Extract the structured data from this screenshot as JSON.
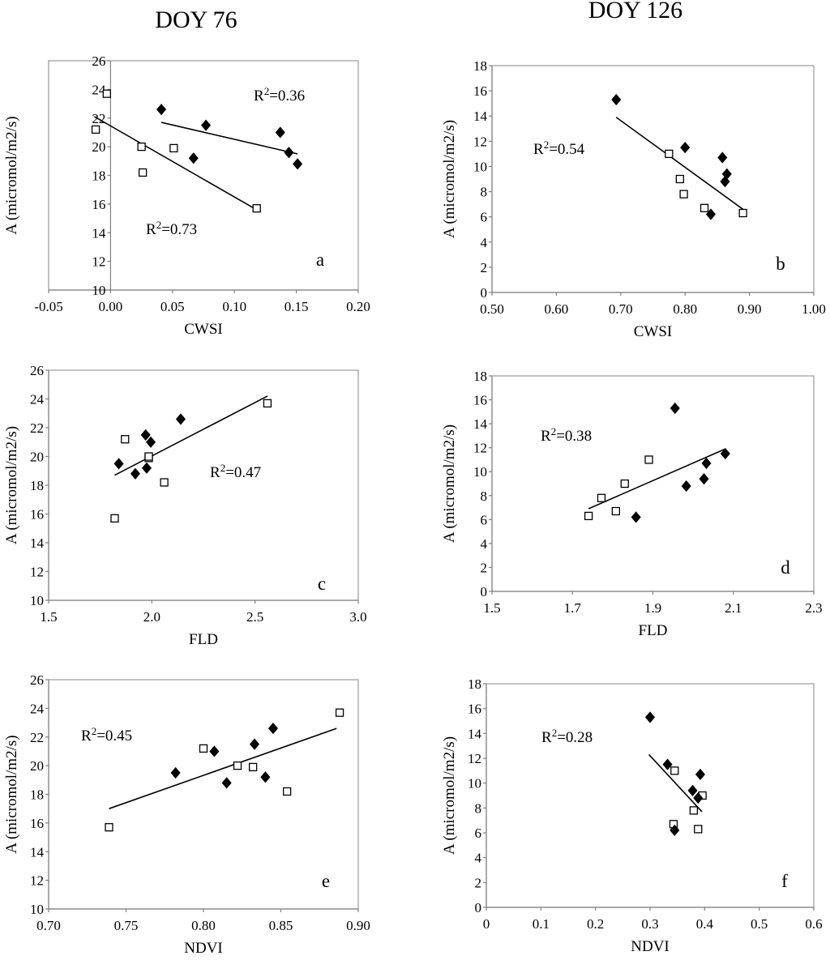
{
  "figure": {
    "column_titles": [
      "DOY 76",
      "DOY 126"
    ]
  },
  "chart_data": [
    {
      "id": "a",
      "type": "scatter",
      "panel_letter": "a",
      "xlabel": "CWSI",
      "ylabel": "A (micromol/m2/s)",
      "xlim": [
        -0.05,
        0.2
      ],
      "ylim": [
        10,
        26
      ],
      "xticks": [
        "-0.05",
        "0.00",
        "0.05",
        "0.10",
        "0.15",
        "0.20"
      ],
      "yticks": [
        "10",
        "12",
        "14",
        "16",
        "18",
        "20",
        "22",
        "24",
        "26"
      ],
      "y_axis_at_x0": true,
      "series": [
        {
          "name": "open",
          "marker": "open-square",
          "x": [
            -0.003,
            -0.012,
            0.025,
            0.026,
            0.051,
            0.118
          ],
          "y": [
            23.7,
            21.2,
            20.0,
            18.2,
            19.9,
            15.7
          ],
          "trend": {
            "x1": -0.013,
            "y1": 22.1,
            "x2": 0.118,
            "y2": 15.6
          },
          "r2": {
            "prefix": "R",
            "sup": "2",
            "value": "=0.73"
          }
        },
        {
          "name": "filled",
          "marker": "filled-diamond",
          "x": [
            0.041,
            0.077,
            0.067,
            0.137,
            0.144,
            0.151
          ],
          "y": [
            22.6,
            21.5,
            19.2,
            21.0,
            19.6,
            18.8
          ],
          "trend": {
            "x1": 0.041,
            "y1": 21.7,
            "x2": 0.151,
            "y2": 19.5
          },
          "r2": {
            "prefix": "R",
            "sup": "2",
            "value": "=0.36"
          }
        }
      ]
    },
    {
      "id": "b",
      "type": "scatter",
      "panel_letter": "b",
      "xlabel": "CWSI",
      "ylabel": "A (micromol/m2/s)",
      "xlim": [
        0.5,
        1.0
      ],
      "ylim": [
        0,
        18
      ],
      "xticks": [
        "0.50",
        "0.60",
        "0.70",
        "0.80",
        "0.90",
        "1.00"
      ],
      "yticks": [
        "0",
        "2",
        "4",
        "6",
        "8",
        "10",
        "12",
        "14",
        "16",
        "18"
      ],
      "series": [
        {
          "name": "open",
          "marker": "open-square",
          "x": [
            0.775,
            0.792,
            0.798,
            0.83,
            0.89
          ],
          "y": [
            11.0,
            9.0,
            7.8,
            6.7,
            6.3
          ],
          "trend": {
            "x1": 0.693,
            "y1": 13.9,
            "x2": 0.89,
            "y2": 6.6
          },
          "r2": {
            "prefix": "R",
            "sup": "2",
            "value": "=0.54"
          }
        },
        {
          "name": "filled",
          "marker": "filled-diamond",
          "x": [
            0.693,
            0.8,
            0.858,
            0.865,
            0.862,
            0.84
          ],
          "y": [
            15.3,
            11.5,
            10.7,
            9.4,
            8.8,
            6.2
          ],
          "trend": null,
          "r2": null
        }
      ]
    },
    {
      "id": "c",
      "type": "scatter",
      "panel_letter": "c",
      "xlabel": "FLD",
      "ylabel": "A (micromol/m2/s)",
      "xlim": [
        1.5,
        3.0
      ],
      "ylim": [
        10,
        26
      ],
      "xticks": [
        "1.5",
        "2.0",
        "2.5",
        "3.0"
      ],
      "yticks": [
        "10",
        "12",
        "14",
        "16",
        "18",
        "20",
        "22",
        "24",
        "26"
      ],
      "series": [
        {
          "name": "open",
          "marker": "open-square",
          "x": [
            2.56,
            1.87,
            1.985,
            2.06,
            1.82,
            1.985
          ],
          "y": [
            23.7,
            21.2,
            19.9,
            18.2,
            15.7,
            20.0
          ],
          "trend": {
            "x1": 1.82,
            "y1": 18.7,
            "x2": 2.56,
            "y2": 24.2
          },
          "r2": {
            "prefix": "R",
            "sup": "2",
            "value": "=0.47"
          }
        },
        {
          "name": "filled",
          "marker": "filled-diamond",
          "x": [
            2.14,
            1.97,
            1.995,
            1.84,
            1.92,
            1.975
          ],
          "y": [
            22.6,
            21.5,
            21.0,
            19.5,
            18.8,
            19.2
          ],
          "trend": null,
          "r2": null
        }
      ]
    },
    {
      "id": "d",
      "type": "scatter",
      "panel_letter": "d",
      "xlabel": "FLD",
      "ylabel": "A (micromol/m2/s)",
      "xlim": [
        1.5,
        2.3
      ],
      "ylim": [
        0,
        18
      ],
      "xticks": [
        "1.5",
        "1.7",
        "1.9",
        "2.1",
        "2.3"
      ],
      "yticks": [
        "0",
        "2",
        "4",
        "6",
        "8",
        "10",
        "12",
        "14",
        "16",
        "18"
      ],
      "series": [
        {
          "name": "open",
          "marker": "open-square",
          "x": [
            1.74,
            1.772,
            1.808,
            1.83,
            1.89
          ],
          "y": [
            6.3,
            7.8,
            6.7,
            9.0,
            11.0
          ],
          "trend": {
            "x1": 1.74,
            "y1": 6.9,
            "x2": 2.08,
            "y2": 11.9
          },
          "r2": {
            "prefix": "R",
            "sup": "2",
            "value": "=0.38"
          }
        },
        {
          "name": "filled",
          "marker": "filled-diamond",
          "x": [
            1.955,
            1.858,
            1.983,
            2.027,
            2.033,
            2.08
          ],
          "y": [
            15.3,
            6.2,
            8.8,
            9.4,
            10.7,
            11.5
          ],
          "trend": null,
          "r2": null
        }
      ]
    },
    {
      "id": "e",
      "type": "scatter",
      "panel_letter": "e",
      "xlabel": "NDVI",
      "ylabel": "A (micromol/m2/s)",
      "xlim": [
        0.7,
        0.9
      ],
      "ylim": [
        10,
        26
      ],
      "xticks": [
        "0.70",
        "0.75",
        "0.80",
        "0.85",
        "0.90"
      ],
      "yticks": [
        "10",
        "12",
        "14",
        "16",
        "18",
        "20",
        "22",
        "24",
        "26"
      ],
      "series": [
        {
          "name": "open",
          "marker": "open-square",
          "x": [
            0.739,
            0.8,
            0.822,
            0.832,
            0.854,
            0.888
          ],
          "y": [
            15.7,
            21.2,
            20.0,
            19.9,
            18.2,
            23.7
          ],
          "trend": {
            "x1": 0.739,
            "y1": 17.0,
            "x2": 0.886,
            "y2": 22.6
          },
          "r2": {
            "prefix": "R",
            "sup": "2",
            "value": "=0.45"
          }
        },
        {
          "name": "filled",
          "marker": "filled-diamond",
          "x": [
            0.782,
            0.807,
            0.815,
            0.833,
            0.84,
            0.845
          ],
          "y": [
            19.5,
            21.0,
            18.8,
            21.5,
            19.2,
            22.6
          ],
          "trend": null,
          "r2": null
        }
      ]
    },
    {
      "id": "f",
      "type": "scatter",
      "panel_letter": "f",
      "xlabel": "NDVI",
      "ylabel": "A (micromol/m2/s)",
      "xlim": [
        0,
        0.6
      ],
      "ylim": [
        0,
        18
      ],
      "xticks": [
        "0",
        "0.1",
        "0.2",
        "0.3",
        "0.4",
        "0.5",
        "0.6"
      ],
      "yticks": [
        "0",
        "2",
        "4",
        "6",
        "8",
        "10",
        "12",
        "14",
        "16",
        "18"
      ],
      "series": [
        {
          "name": "open",
          "marker": "open-square",
          "x": [
            0.345,
            0.343,
            0.38,
            0.388,
            0.396
          ],
          "y": [
            11.0,
            6.7,
            7.8,
            6.3,
            9.0
          ],
          "trend": {
            "x1": 0.298,
            "y1": 12.3,
            "x2": 0.395,
            "y2": 7.7
          },
          "r2": {
            "prefix": "R",
            "sup": "2",
            "value": "=0.28"
          }
        },
        {
          "name": "filled",
          "marker": "filled-diamond",
          "x": [
            0.3,
            0.332,
            0.378,
            0.392,
            0.388,
            0.345
          ],
          "y": [
            15.3,
            11.5,
            9.4,
            10.7,
            8.8,
            6.2
          ],
          "trend": null,
          "r2": null
        }
      ]
    }
  ]
}
